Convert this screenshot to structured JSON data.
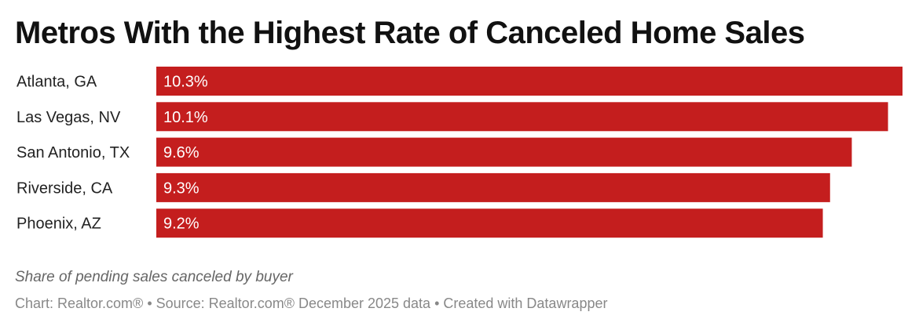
{
  "chart_data": {
    "type": "bar",
    "orientation": "horizontal",
    "title": "Metros With the Highest Rate of Canceled Home Sales",
    "categories": [
      "Atlanta, GA",
      "Las Vegas, NV",
      "San Antonio, TX",
      "Riverside, CA",
      "Phoenix, AZ"
    ],
    "values": [
      10.3,
      10.1,
      9.6,
      9.3,
      9.2
    ],
    "value_labels": [
      "10.3%",
      "10.1%",
      "9.6%",
      "9.3%",
      "9.2%"
    ],
    "unit": "%",
    "xlim": [
      0,
      10.3
    ],
    "grid": false,
    "bar_color": "#c41e1e",
    "note": "Share of pending sales canceled by buyer",
    "source": "Chart: Realtor.com® • Source: Realtor.com® December 2025 data • Created with Datawrapper"
  }
}
